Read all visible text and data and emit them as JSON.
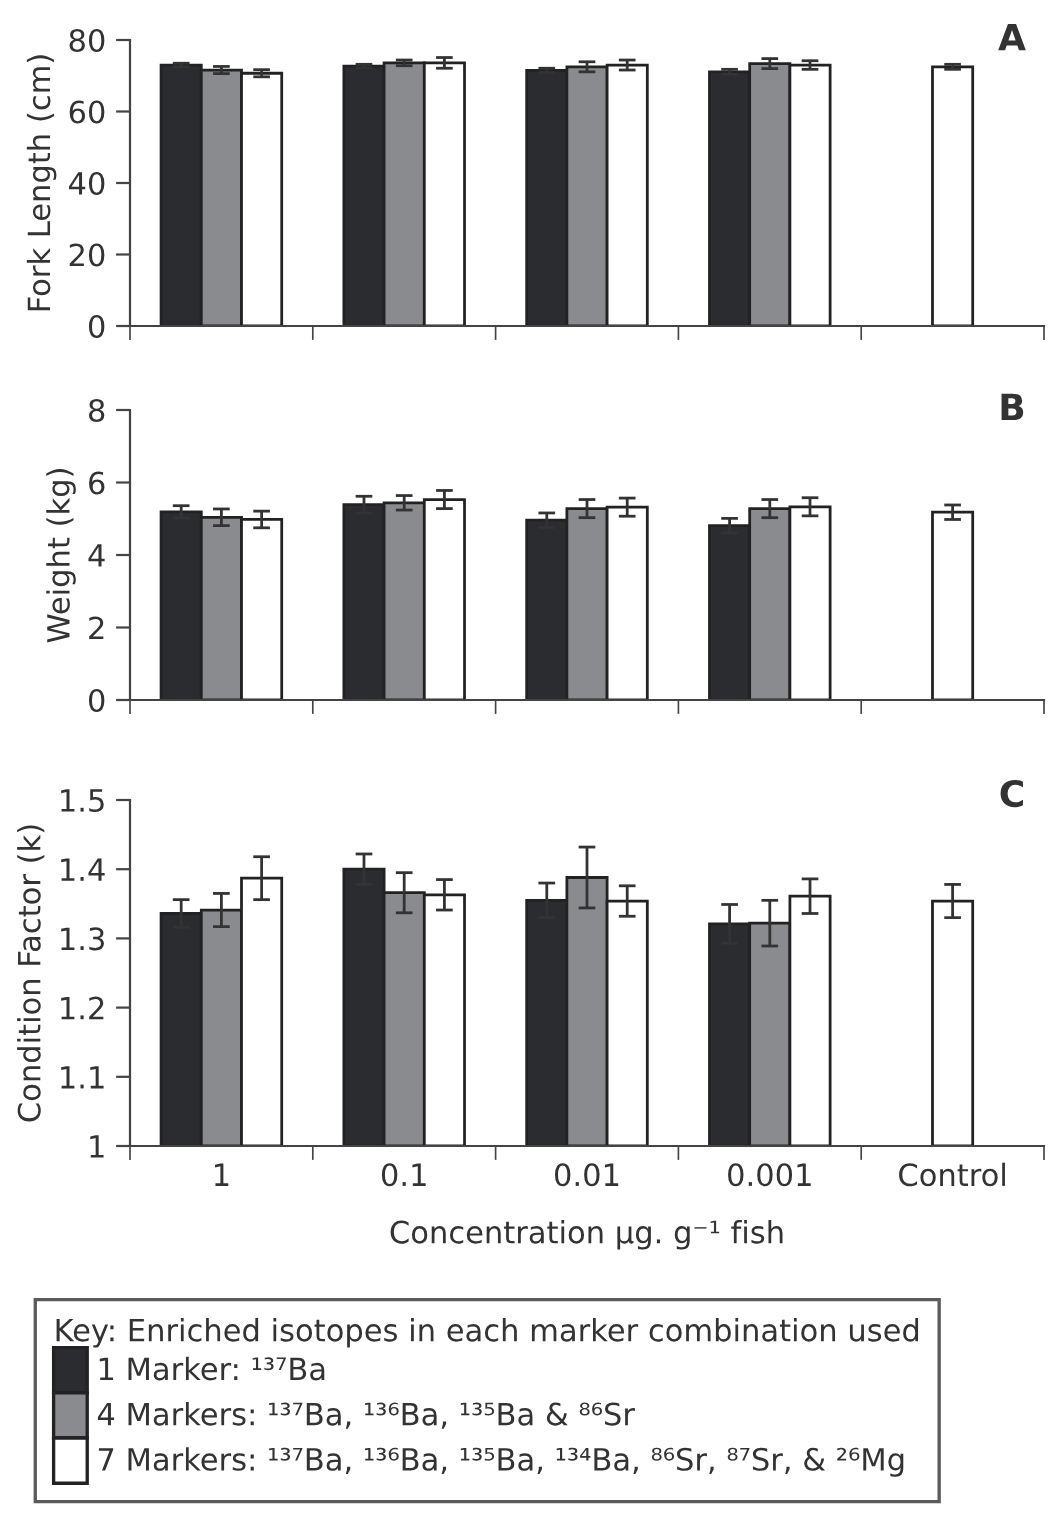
{
  "chart_data": [
    {
      "type": "bar",
      "title": "A",
      "ylabel": "Fork Length (cm)",
      "categories": [
        null,
        null,
        null,
        null,
        null
      ],
      "tick_labels": "y",
      "ylim": [
        0,
        80
      ],
      "yticks": [
        0,
        20,
        40,
        60,
        80
      ],
      "grid": false,
      "series": [
        {
          "color": "#2b2c30",
          "values": [
            73.0,
            72.7,
            71.5,
            71.1,
            null
          ],
          "errors": [
            0.5,
            0.5,
            0.6,
            0.7,
            null
          ]
        },
        {
          "color": "#8a8b8e",
          "values": [
            71.6,
            73.6,
            72.5,
            73.4,
            null
          ],
          "errors": [
            1.0,
            0.8,
            1.4,
            1.4,
            null
          ]
        },
        {
          "color": "#ffffff",
          "values": [
            70.7,
            73.6,
            73.0,
            73.0,
            null
          ],
          "errors": [
            1.0,
            1.5,
            1.4,
            1.2,
            null
          ]
        },
        {
          "color": "#ffffff",
          "values": [
            null,
            null,
            null,
            null,
            72.5
          ],
          "errors": [
            null,
            null,
            null,
            null,
            0.7
          ]
        }
      ]
    },
    {
      "type": "bar",
      "title": "B",
      "ylabel": "Weight (kg)",
      "categories": [
        null,
        null,
        null,
        null,
        null
      ],
      "tick_labels": "y",
      "ylim": [
        0,
        8
      ],
      "yticks": [
        0,
        2,
        4,
        6,
        8
      ],
      "grid": false,
      "series": [
        {
          "color": "#2b2c30",
          "values": [
            5.19,
            5.39,
            4.96,
            4.81,
            null
          ],
          "errors": [
            0.17,
            0.23,
            0.2,
            0.2,
            null
          ]
        },
        {
          "color": "#8a8b8e",
          "values": [
            5.04,
            5.44,
            5.28,
            5.28,
            null
          ],
          "errors": [
            0.23,
            0.2,
            0.25,
            0.25,
            null
          ]
        },
        {
          "color": "#ffffff",
          "values": [
            4.98,
            5.53,
            5.32,
            5.33,
            null
          ],
          "errors": [
            0.23,
            0.25,
            0.25,
            0.25,
            null
          ]
        },
        {
          "color": "#ffffff",
          "values": [
            null,
            null,
            null,
            null,
            5.18
          ],
          "errors": [
            null,
            null,
            null,
            null,
            0.2
          ]
        }
      ]
    },
    {
      "type": "bar",
      "title": "C",
      "ylabel": "Condition Factor (k)",
      "xlabel": "Concentration µg. g⁻¹ fish",
      "legend_title": "Key: Enriched isotopes in each marker combination used",
      "legend": "bottom",
      "categories": [
        "1",
        "0.1",
        "0.01",
        "0.001",
        "Control"
      ],
      "ylim": [
        1,
        1.5
      ],
      "yticks": [
        1,
        1.1,
        1.2,
        1.3,
        1.4,
        1.5
      ],
      "grid": false,
      "series": [
        {
          "name": "1 Marker: ¹³⁷Ba",
          "color": "#2b2c30",
          "values": [
            1.336,
            1.4,
            1.355,
            1.321,
            null
          ],
          "errors": [
            0.02,
            0.022,
            0.025,
            0.028,
            null
          ]
        },
        {
          "name": "4 Markers: ¹³⁷Ba, ¹³⁶Ba, ¹³⁵Ba & ⁸⁶Sr",
          "color": "#8a8b8e",
          "values": [
            1.341,
            1.366,
            1.388,
            1.322,
            null
          ],
          "errors": [
            0.024,
            0.029,
            0.044,
            0.033,
            null
          ]
        },
        {
          "name": "7 Markers: ¹³⁷Ba, ¹³⁶Ba, ¹³⁵Ba, ¹³⁴Ba, ⁸⁶Sr, ⁸⁷Sr, & ²⁶Mg",
          "color": "#ffffff",
          "values": [
            1.387,
            1.363,
            1.354,
            1.361,
            null
          ],
          "errors": [
            0.031,
            0.022,
            0.022,
            0.025,
            null
          ]
        },
        {
          "color": "#ffffff",
          "values": [
            null,
            null,
            null,
            null,
            1.354
          ],
          "errors": [
            null,
            null,
            null,
            null,
            0.024
          ]
        }
      ]
    }
  ]
}
